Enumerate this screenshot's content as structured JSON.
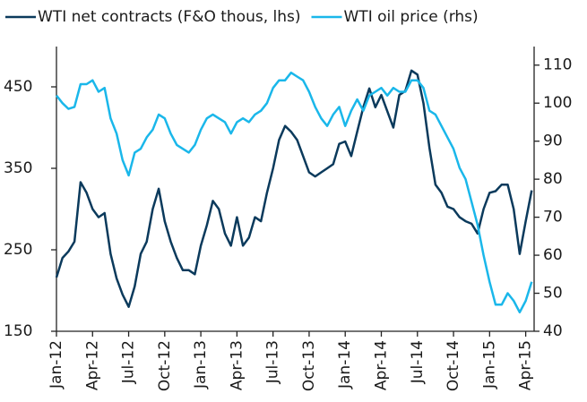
{
  "chart_data": {
    "type": "line",
    "legend_position": "top",
    "x": [
      0,
      0.5,
      1,
      1.5,
      2,
      2.5,
      3,
      3.5,
      4,
      4.5,
      5,
      5.5,
      6,
      6.5,
      7,
      7.5,
      8,
      8.5,
      9,
      9.5,
      10,
      10.5,
      11,
      11.5,
      12,
      12.5,
      13,
      13.5,
      14,
      14.5,
      15,
      15.5,
      16,
      16.5,
      17,
      17.5,
      18,
      18.5,
      19,
      19.5,
      20,
      20.5,
      21,
      21.5,
      22,
      22.5,
      23,
      23.5,
      24,
      24.5,
      25,
      25.5,
      26,
      26.5,
      27,
      27.5,
      28,
      28.5,
      29,
      29.5,
      30,
      30.5,
      31,
      31.5,
      32,
      32.5,
      33,
      33.5,
      34,
      34.5,
      35,
      35.5,
      36,
      36.5,
      37,
      37.5,
      38,
      38.5,
      39,
      39.5
    ],
    "xlim": [
      0,
      39.7
    ],
    "xticks": [
      {
        "value": 0,
        "label": "Jan-12"
      },
      {
        "value": 3,
        "label": "Apr-12"
      },
      {
        "value": 6,
        "label": "Jul-12"
      },
      {
        "value": 9,
        "label": "Oct-12"
      },
      {
        "value": 12,
        "label": "Jan-13"
      },
      {
        "value": 15,
        "label": "Apr-13"
      },
      {
        "value": 18,
        "label": "Jul-13"
      },
      {
        "value": 21,
        "label": "Oct-13"
      },
      {
        "value": 24,
        "label": "Jan-14"
      },
      {
        "value": 27,
        "label": "Apr-14"
      },
      {
        "value": 30,
        "label": "Jul-14"
      },
      {
        "value": 33,
        "label": "Oct-14"
      },
      {
        "value": 36,
        "label": "Jan-15"
      },
      {
        "value": 39,
        "label": "Apr-15"
      }
    ],
    "ylim": [
      150,
      500
    ],
    "yticks": [
      150,
      250,
      350,
      450
    ],
    "y2lim": [
      40,
      115
    ],
    "y2ticks": [
      40,
      50,
      60,
      70,
      80,
      90,
      100,
      110
    ],
    "series": [
      {
        "name": "WTI net contracts (F&O thous, lhs)",
        "color": "#0b3a5c",
        "values": [
          216,
          240,
          248,
          260,
          333,
          320,
          300,
          290,
          295,
          245,
          215,
          195,
          180,
          205,
          245,
          260,
          300,
          325,
          285,
          260,
          240,
          225,
          225,
          220,
          255,
          280,
          310,
          300,
          270,
          255,
          290,
          255,
          265,
          290,
          285,
          320,
          350,
          385,
          402,
          395,
          385,
          365,
          345,
          340,
          345,
          350,
          355,
          380,
          383,
          365,
          395,
          425,
          448,
          425,
          440,
          420,
          400,
          440,
          445,
          470,
          465,
          430,
          375,
          330,
          320,
          303,
          300,
          290,
          285,
          282,
          270,
          300,
          320,
          322,
          330,
          330,
          300,
          245,
          285,
          323
        ]
      },
      {
        "name": "WTI oil price (rhs)",
        "color": "#1ab7ea",
        "axis": "y2",
        "values": [
          102,
          100,
          98.5,
          99,
          105,
          105,
          106,
          103,
          104,
          96,
          92,
          85,
          81,
          87,
          88,
          91,
          93,
          97,
          96,
          92,
          89,
          88,
          87,
          89,
          93,
          96,
          97,
          96,
          95,
          92,
          95,
          96,
          95,
          97,
          98,
          100,
          104,
          106,
          106,
          108,
          107,
          106,
          103,
          99,
          96,
          94,
          97,
          99,
          94,
          98,
          101,
          98,
          102,
          103,
          104,
          102,
          104,
          103,
          103,
          106,
          106,
          104,
          98,
          97,
          94,
          91,
          88,
          83,
          80,
          74,
          68,
          60,
          53,
          47,
          47,
          50,
          48,
          45,
          48,
          53
        ]
      }
    ]
  }
}
